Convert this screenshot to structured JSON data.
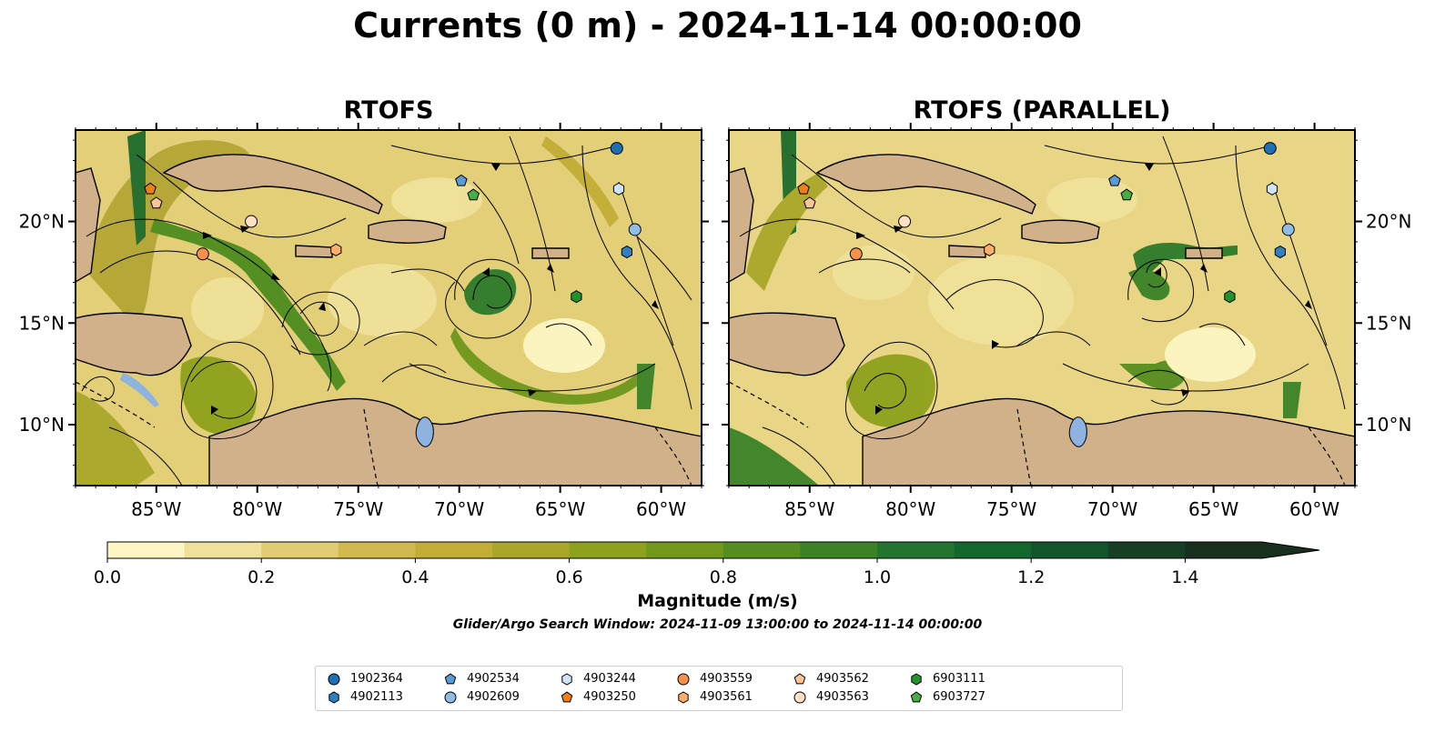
{
  "title": "Currents (0 m) - 2024-11-14 00:00:00",
  "chart_data": [
    {
      "type": "heatmap",
      "panel_title": "RTOFS",
      "x_ticks": [
        "85°W",
        "80°W",
        "75°W",
        "70°W",
        "65°W",
        "60°W"
      ],
      "x_tick_values": [
        -85,
        -80,
        -75,
        -70,
        -65,
        -60
      ],
      "y_ticks": [
        "20°N",
        "15°N",
        "10°N"
      ],
      "y_tick_values": [
        20,
        15,
        10
      ],
      "xlim": [
        -89,
        -58
      ],
      "ylim": [
        7,
        24.5
      ],
      "grid": false,
      "overlay": "streamlines"
    },
    {
      "type": "heatmap",
      "panel_title": "RTOFS (PARALLEL)",
      "x_ticks": [
        "85°W",
        "80°W",
        "75°W",
        "70°W",
        "65°W",
        "60°W"
      ],
      "x_tick_values": [
        -85,
        -80,
        -75,
        -70,
        -65,
        -60
      ],
      "y_ticks": [
        "20°N",
        "15°N",
        "10°N"
      ],
      "y_tick_values": [
        20,
        15,
        10
      ],
      "xlim": [
        -89,
        -58
      ],
      "ylim": [
        7,
        24.5
      ],
      "grid": false,
      "overlay": "streamlines"
    }
  ],
  "colorbar": {
    "label": "Magnitude (m/s)",
    "ticks": [
      "0.0",
      "0.2",
      "0.4",
      "0.6",
      "0.8",
      "1.0",
      "1.2",
      "1.4"
    ],
    "tick_values": [
      0.0,
      0.2,
      0.4,
      0.6,
      0.8,
      1.0,
      1.2,
      1.4
    ],
    "range": [
      0,
      1.5
    ],
    "extend": "max",
    "colors": [
      "#fdf6c3",
      "#f0e19a",
      "#e1cb73",
      "#d1b84f",
      "#c2ad37",
      "#aaa62a",
      "#8ea11c",
      "#72981b",
      "#558d1f",
      "#3b8226",
      "#22742e",
      "#14662f",
      "#11552b",
      "#163f24",
      "#192f1d"
    ]
  },
  "search_window": "Glider/Argo Search Window: 2024-11-09 13:00:00 to 2024-11-14 00:00:00",
  "floats": [
    {
      "id": "1902364",
      "marker": "circle",
      "color": "#1f6fb4",
      "lon": -62.2,
      "lat": 23.6
    },
    {
      "id": "4902113",
      "marker": "hexagon",
      "color": "#2f7fc1",
      "lon": -61.7,
      "lat": 18.5
    },
    {
      "id": "4902534",
      "marker": "pentagon",
      "color": "#5a9bd5",
      "lon": -69.9,
      "lat": 22.0
    },
    {
      "id": "4902609",
      "marker": "circle",
      "color": "#8fbde6",
      "lon": -61.3,
      "lat": 19.6
    },
    {
      "id": "4903244",
      "marker": "hexagon",
      "color": "#cfe3f5",
      "lon": -62.1,
      "lat": 21.6
    },
    {
      "id": "4903250",
      "marker": "pentagon",
      "color": "#f07f1a",
      "lon": -85.3,
      "lat": 21.6
    },
    {
      "id": "4903559",
      "marker": "circle",
      "color": "#f6914a",
      "lon": -82.7,
      "lat": 18.4
    },
    {
      "id": "4903561",
      "marker": "hexagon",
      "color": "#fdae6b",
      "lon": -76.1,
      "lat": 18.6
    },
    {
      "id": "4903562",
      "marker": "pentagon",
      "color": "#fdc597",
      "lon": -85.0,
      "lat": 20.9
    },
    {
      "id": "4903563",
      "marker": "circle",
      "color": "#fde0c5",
      "lon": -80.3,
      "lat": 20.0
    },
    {
      "id": "6903111",
      "marker": "hexagon",
      "color": "#23922d",
      "lon": -64.2,
      "lat": 16.3
    },
    {
      "id": "6903727",
      "marker": "pentagon",
      "color": "#4aad43",
      "lon": -69.3,
      "lat": 21.3
    }
  ]
}
